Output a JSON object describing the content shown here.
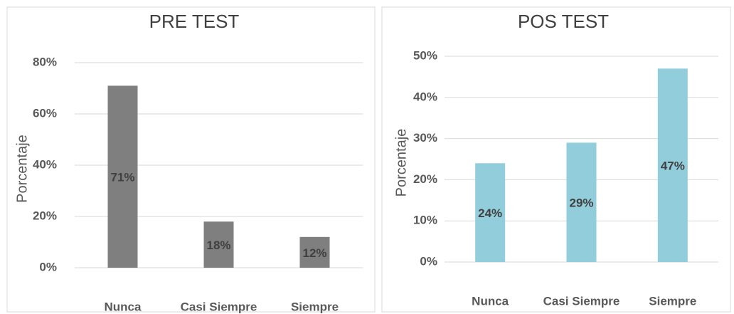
{
  "chart_data": [
    {
      "type": "bar",
      "title": "PRE TEST",
      "y_label": "Porcentaje",
      "categories": [
        "Nunca",
        "Casi Siempre",
        "Siempre"
      ],
      "values": [
        71,
        18,
        12
      ],
      "value_labels": [
        "71%",
        "18%",
        "12%"
      ],
      "color": "#7f7f7f",
      "ylim": [
        0,
        80
      ],
      "yticks": [
        {
          "value": 0,
          "label": "0%"
        },
        {
          "value": 20,
          "label": "20%"
        },
        {
          "value": 40,
          "label": "40%"
        },
        {
          "value": 60,
          "label": "60%"
        },
        {
          "value": 80,
          "label": "80%"
        }
      ],
      "grid": true
    },
    {
      "type": "bar",
      "title": "POS TEST",
      "y_label": "Porcentaje",
      "categories": [
        "Nunca",
        "Casi Siempre",
        "Siempre"
      ],
      "values": [
        24,
        29,
        47
      ],
      "value_labels": [
        "24%",
        "29%",
        "47%"
      ],
      "color": "#92cddc",
      "ylim": [
        0,
        50
      ],
      "yticks": [
        {
          "value": 0,
          "label": "0%"
        },
        {
          "value": 10,
          "label": "10%"
        },
        {
          "value": 20,
          "label": "20%"
        },
        {
          "value": 30,
          "label": "30%"
        },
        {
          "value": 40,
          "label": "40%"
        },
        {
          "value": 50,
          "label": "50%"
        }
      ],
      "grid": true
    }
  ]
}
